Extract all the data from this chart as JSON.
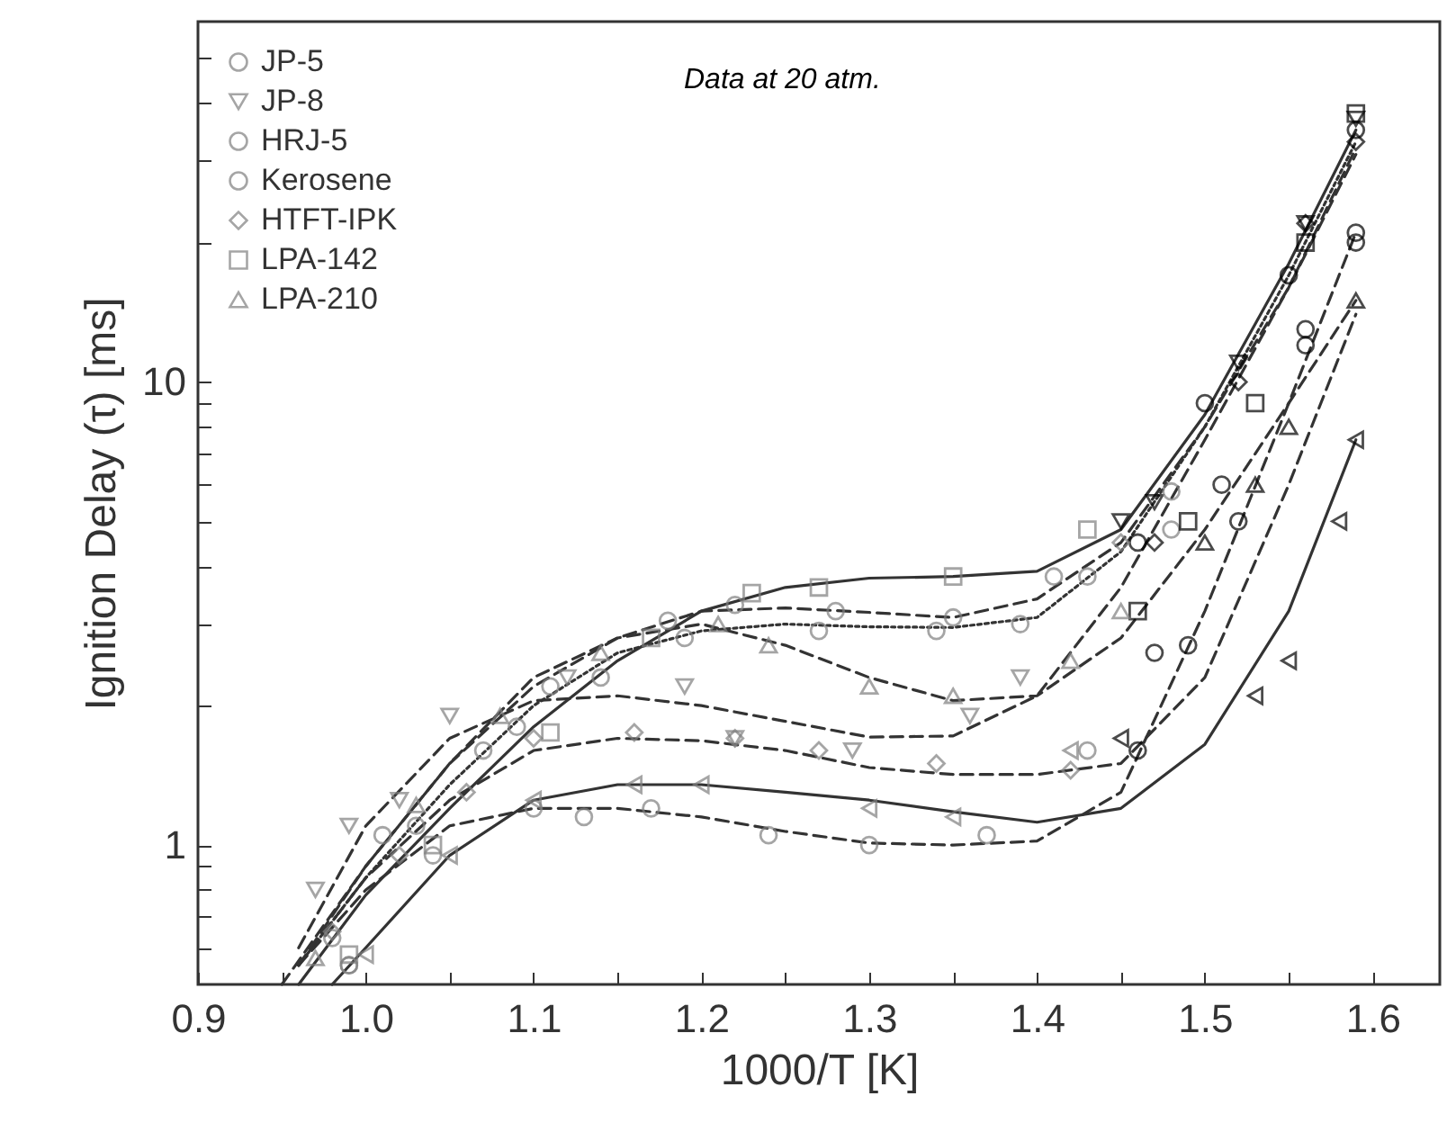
{
  "chart_data": {
    "type": "scatter",
    "xlabel": "1000/T [K]",
    "ylabel": "Ignition Delay (τ) [ms]",
    "annotations": [
      "Data at 20 atm."
    ],
    "log": "y",
    "legend": "top left",
    "xlim": [
      0.9,
      1.64
    ],
    "xticks": [
      0.9,
      {
        "value": 0.95,
        "label": null
      },
      {
        "value": 1,
        "label": "1.0"
      },
      {
        "value": 1.05,
        "label": null
      },
      1.1,
      {
        "value": 1.15,
        "label": null
      },
      1.2,
      {
        "value": 1.25,
        "label": null
      },
      1.3,
      {
        "value": 1.35,
        "label": null
      },
      1.4,
      {
        "value": 1.45,
        "label": null
      },
      1.5,
      {
        "value": 1.55,
        "label": null
      },
      1.6
    ],
    "ylim": [
      0.5,
      60
    ],
    "yticks": [
      {
        "value": 0.6,
        "label": null
      },
      {
        "value": 0.7,
        "label": null
      },
      {
        "value": 0.8,
        "label": null
      },
      {
        "value": 0.9,
        "label": null
      },
      1,
      {
        "value": 2,
        "label": null
      },
      {
        "value": 3,
        "label": null
      },
      {
        "value": 4,
        "label": null
      },
      {
        "value": 5,
        "label": null
      },
      {
        "value": 6,
        "label": null
      },
      {
        "value": 7,
        "label": null
      },
      {
        "value": 8,
        "label": null
      },
      {
        "value": 9,
        "label": null
      },
      10,
      {
        "value": 20,
        "label": null
      },
      {
        "value": 30,
        "label": null
      },
      {
        "value": 40,
        "label": null
      },
      {
        "value": 50,
        "label": null
      }
    ],
    "series": [
      {
        "name": "JP-5",
        "marker": "circle",
        "color": "#808080",
        "x": [
          0.99,
          1.03,
          1.09,
          1.14,
          1.19,
          1.27,
          1.34,
          1.39,
          1.43,
          1.48
        ],
        "values": [
          0.55,
          1.1,
          1.8,
          2.3,
          2.8,
          2.9,
          2.9,
          3.0,
          3.8,
          4.8
        ]
      },
      {
        "marker": "circle",
        "color": "#000000",
        "x": [
          1.46,
          1.5,
          1.55,
          1.59
        ],
        "values": [
          4.5,
          9,
          17,
          35
        ]
      },
      {
        "name": "JP-8",
        "marker": "triangle-down",
        "color": "#808080",
        "x": [
          0.97,
          0.99,
          1.02,
          1.05,
          1.12,
          1.19,
          1.22,
          1.29,
          1.36,
          1.39
        ],
        "values": [
          0.8,
          1.1,
          1.25,
          1.9,
          2.3,
          2.2,
          1.7,
          1.6,
          1.9,
          2.3
        ]
      },
      {
        "marker": "triangle-down",
        "color": "#000000",
        "x": [
          1.45,
          1.47,
          1.52,
          1.56,
          1.59
        ],
        "values": [
          5,
          5.5,
          11,
          22,
          37
        ]
      },
      {
        "name": "HRJ-5",
        "marker": "circle",
        "color": "#808080",
        "x": [
          0.98,
          1.01,
          1.07,
          1.11,
          1.18,
          1.22,
          1.28,
          1.35,
          1.41,
          1.48
        ],
        "values": [
          0.63,
          1.05,
          1.6,
          2.2,
          3.05,
          3.3,
          3.2,
          3.1,
          3.8,
          5.8
        ]
      },
      {
        "marker": "circle",
        "color": "#000000",
        "x": [
          1.47,
          1.51,
          1.56,
          1.59
        ],
        "values": [
          2.6,
          6,
          12,
          20
        ]
      },
      {
        "name": "Kerosene",
        "marker": "circle",
        "color": "#808080",
        "x": [
          0.99,
          1.04,
          1.1,
          1.13,
          1.17,
          1.24,
          1.3,
          1.37,
          1.43
        ],
        "values": [
          0.55,
          0.95,
          1.2,
          1.15,
          1.2,
          1.05,
          1.0,
          1.05,
          1.6
        ]
      },
      {
        "marker": "circle",
        "color": "#000000",
        "x": [
          1.46,
          1.49,
          1.52,
          1.56,
          1.59
        ],
        "values": [
          1.6,
          2.7,
          5,
          13,
          21
        ]
      },
      {
        "name": "HTFT-IPK",
        "marker": "diamond",
        "color": "#808080",
        "x": [
          0.98,
          1.02,
          1.06,
          1.1,
          1.16,
          1.22,
          1.27,
          1.34,
          1.42,
          1.45
        ],
        "values": [
          0.65,
          0.95,
          1.3,
          1.7,
          1.75,
          1.7,
          1.6,
          1.5,
          1.45,
          4.5
        ]
      },
      {
        "marker": "diamond",
        "color": "#000000",
        "x": [
          1.47,
          1.52,
          1.56,
          1.59
        ],
        "values": [
          4.5,
          10,
          22,
          33
        ]
      },
      {
        "name": "LPA-142",
        "marker": "square",
        "color": "#808080",
        "x": [
          0.99,
          1.04,
          1.11,
          1.17,
          1.23,
          1.27,
          1.35,
          1.43
        ],
        "values": [
          0.58,
          1.0,
          1.75,
          2.8,
          3.5,
          3.6,
          3.8,
          4.8
        ]
      },
      {
        "marker": "square",
        "color": "#000000",
        "x": [
          1.46,
          1.49,
          1.53,
          1.56,
          1.59
        ],
        "values": [
          3.2,
          5,
          9,
          20,
          38
        ]
      },
      {
        "name": "LPA-210",
        "marker": "triangle",
        "color": "#808080",
        "x": [
          0.97,
          1.03,
          1.08,
          1.14,
          1.21,
          1.24,
          1.3,
          1.35,
          1.42,
          1.45
        ],
        "values": [
          0.57,
          1.22,
          1.9,
          2.6,
          3.0,
          2.7,
          2.2,
          2.1,
          2.5,
          3.2
        ]
      },
      {
        "marker": "triangle",
        "color": "#000000",
        "x": [
          1.5,
          1.53,
          1.55,
          1.59
        ],
        "values": [
          4.5,
          6,
          8,
          15
        ]
      },
      {
        "marker": "triangle-left",
        "color": "#808080",
        "x": [
          1.0,
          1.05,
          1.1,
          1.16,
          1.2,
          1.3,
          1.35,
          1.42
        ],
        "values": [
          0.58,
          0.95,
          1.25,
          1.35,
          1.35,
          1.2,
          1.15,
          1.6
        ]
      },
      {
        "marker": "triangle-left",
        "color": "#000000",
        "x": [
          1.45,
          1.53,
          1.55,
          1.58,
          1.59
        ],
        "values": [
          1.7,
          2.1,
          2.5,
          5,
          7.5
        ]
      },
      {
        "type": "line",
        "line_style": "dotted",
        "color": "#333333",
        "x": [
          0.96,
          1.0,
          1.05,
          1.1,
          1.15,
          1.2,
          1.25,
          1.3,
          1.35,
          1.4,
          1.45,
          1.5,
          1.55,
          1.59
        ],
        "values": [
          0.55,
          0.85,
          1.35,
          2.0,
          2.6,
          2.9,
          3.0,
          2.96,
          2.95,
          3.1,
          4.3,
          8,
          17,
          33
        ]
      },
      {
        "type": "line",
        "line_style": "dashed",
        "color": "#333333",
        "x": [
          0.96,
          1.0,
          1.05,
          1.1,
          1.15,
          1.2,
          1.25,
          1.3,
          1.35,
          1.4,
          1.45,
          1.5,
          1.55,
          1.59
        ],
        "values": [
          0.6,
          1.1,
          1.7,
          2.05,
          2.1,
          2.0,
          1.85,
          1.71,
          1.72,
          2.1,
          3.6,
          7.5,
          16,
          32
        ]
      },
      {
        "type": "line",
        "line_style": "dashed",
        "color": "#333333",
        "x": [
          0.95,
          1.0,
          1.05,
          1.1,
          1.15,
          1.2,
          1.25,
          1.3,
          1.35,
          1.4,
          1.45,
          1.5,
          1.55,
          1.59
        ],
        "values": [
          0.5,
          0.9,
          1.5,
          2.2,
          2.8,
          3.2,
          3.25,
          3.18,
          3.1,
          3.4,
          4.5,
          8,
          16,
          31
        ]
      },
      {
        "type": "line",
        "line_style": "dashed",
        "color": "#333333",
        "x": [
          0.96,
          1.0,
          1.05,
          1.1,
          1.15,
          1.2,
          1.25,
          1.3,
          1.35,
          1.4,
          1.45,
          1.5,
          1.55,
          1.59
        ],
        "values": [
          0.55,
          0.8,
          1.1,
          1.2,
          1.2,
          1.15,
          1.07,
          1.01,
          1.0,
          1.02,
          1.3,
          3.2,
          9,
          21
        ]
      },
      {
        "type": "line",
        "line_style": "dashed",
        "color": "#333333",
        "x": [
          0.96,
          1.0,
          1.05,
          1.1,
          1.15,
          1.2,
          1.25,
          1.3,
          1.35,
          1.4,
          1.45,
          1.5,
          1.55,
          1.59
        ],
        "values": [
          0.55,
          0.85,
          1.25,
          1.6,
          1.7,
          1.68,
          1.6,
          1.47,
          1.42,
          1.42,
          1.5,
          2.3,
          6,
          14
        ]
      },
      {
        "type": "line",
        "line_style": "solid",
        "color": "#333333",
        "x": [
          0.96,
          1.0,
          1.05,
          1.1,
          1.15,
          1.2,
          1.25,
          1.3,
          1.35,
          1.4,
          1.45,
          1.5,
          1.55,
          1.59
        ],
        "values": [
          0.5,
          0.78,
          1.2,
          1.8,
          2.5,
          3.2,
          3.6,
          3.77,
          3.8,
          3.9,
          4.8,
          8.5,
          18,
          35
        ]
      },
      {
        "type": "line",
        "line_style": "dashed",
        "color": "#333333",
        "x": [
          0.96,
          1.0,
          1.05,
          1.1,
          1.15,
          1.2,
          1.25,
          1.3,
          1.35,
          1.4,
          1.45,
          1.5,
          1.55,
          1.59
        ],
        "values": [
          0.55,
          0.9,
          1.5,
          2.3,
          2.8,
          3.0,
          2.7,
          2.3,
          2.05,
          2.1,
          2.8,
          4.8,
          9,
          15
        ]
      },
      {
        "type": "line",
        "line_style": "solid",
        "color": "#333333",
        "x": [
          0.98,
          1.0,
          1.05,
          1.1,
          1.15,
          1.2,
          1.25,
          1.3,
          1.35,
          1.4,
          1.45,
          1.5,
          1.55,
          1.59
        ],
        "values": [
          0.5,
          0.6,
          0.95,
          1.25,
          1.35,
          1.35,
          1.3,
          1.25,
          1.18,
          1.12,
          1.2,
          1.65,
          3.2,
          7.5
        ]
      }
    ]
  }
}
